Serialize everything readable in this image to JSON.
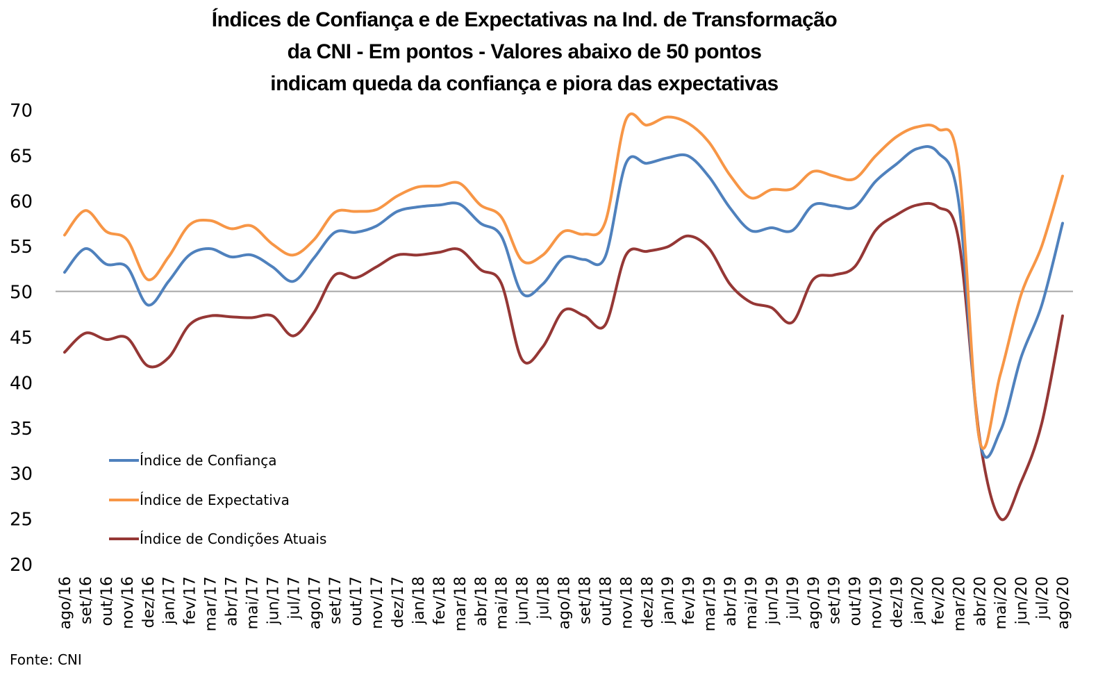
{
  "chart_data": {
    "type": "line",
    "title": "Índices de Confiança e de Expectativas na Ind. de Transformação da CNI - Em pontos - Valores abaixo de 50 pontos indicam queda da confiança e piora das expectativas",
    "title_lines": [
      "Índices de Confiança e de Expectativas na Ind. de Transformação",
      "da CNI - Em pontos - Valores abaixo de 50 pontos",
      "indicam queda da confiança e piora das expectativas"
    ],
    "xlabel": "",
    "ylabel": "",
    "ylim": [
      20,
      70
    ],
    "yticks": [
      20,
      25,
      30,
      35,
      40,
      45,
      50,
      55,
      60,
      65,
      70
    ],
    "reference_line": 50,
    "grid": false,
    "legend_position": "bottom-left",
    "categories": [
      "ago/16",
      "set/16",
      "out/16",
      "nov/16",
      "dez/16",
      "jan/17",
      "fev/17",
      "mar/17",
      "abr/17",
      "mai/17",
      "jun/17",
      "jul/17",
      "ago/17",
      "set/17",
      "out/17",
      "nov/17",
      "dez/17",
      "jan/18",
      "fev/18",
      "mar/18",
      "abr/18",
      "mai/18",
      "jun/18",
      "jul/18",
      "ago/18",
      "set/18",
      "out/18",
      "nov/18",
      "dez/18",
      "jan/19",
      "fev/19",
      "mar/19",
      "abr/19",
      "mai/19",
      "jun/19",
      "jul/19",
      "ago/19",
      "set/19",
      "out/19",
      "nov/19",
      "dez/19",
      "jan/20",
      "fev/20",
      "mar/20",
      "abr/20",
      "mai/20",
      "jun/20",
      "jul/20",
      "ago/20"
    ],
    "series": [
      {
        "name": "Índice de Confiança",
        "color": "#4f81bd",
        "values": [
          52.1,
          54.7,
          53.0,
          52.7,
          48.5,
          51.1,
          54.0,
          54.7,
          53.8,
          54.0,
          52.7,
          51.1,
          53.7,
          56.5,
          56.5,
          57.2,
          58.8,
          59.3,
          59.5,
          59.6,
          57.5,
          56.1,
          49.8,
          50.8,
          53.7,
          53.5,
          53.8,
          64.1,
          64.1,
          64.7,
          64.9,
          62.6,
          59.2,
          56.7,
          57.0,
          56.7,
          59.5,
          59.4,
          59.3,
          62.1,
          64.0,
          65.7,
          65.3,
          59.9,
          33.7,
          34.6,
          42.7,
          48.5,
          57.5
        ]
      },
      {
        "name": "Índice de Expectativa",
        "color": "#f79646",
        "values": [
          56.2,
          58.9,
          56.6,
          55.7,
          51.3,
          53.8,
          57.3,
          57.8,
          56.9,
          57.2,
          55.2,
          54.0,
          55.7,
          58.7,
          58.8,
          59.0,
          60.5,
          61.5,
          61.6,
          61.9,
          59.5,
          58.2,
          53.4,
          54.0,
          56.6,
          56.3,
          57.6,
          68.9,
          68.3,
          69.2,
          68.5,
          66.4,
          62.8,
          60.3,
          61.2,
          61.3,
          63.2,
          62.7,
          62.4,
          64.9,
          67.0,
          68.1,
          67.9,
          63.9,
          33.7,
          40.8,
          49.6,
          55.0,
          62.7
        ]
      },
      {
        "name": "Índice de Condições Atuais",
        "color": "#953735",
        "values": [
          43.3,
          45.4,
          44.7,
          44.9,
          41.8,
          42.7,
          46.3,
          47.3,
          47.2,
          47.1,
          47.3,
          45.1,
          47.7,
          51.8,
          51.5,
          52.7,
          54.0,
          54.0,
          54.3,
          54.6,
          52.4,
          50.9,
          42.5,
          43.9,
          47.9,
          47.3,
          46.3,
          54.0,
          54.4,
          54.9,
          56.1,
          54.7,
          50.8,
          48.8,
          48.2,
          46.6,
          51.3,
          51.8,
          52.7,
          56.7,
          58.4,
          59.5,
          59.3,
          55.7,
          34.0,
          25.0,
          29.0,
          35.5,
          47.3
        ]
      }
    ],
    "reference_line_color": "#a6a6a6"
  },
  "source": "Fonte: CNI"
}
